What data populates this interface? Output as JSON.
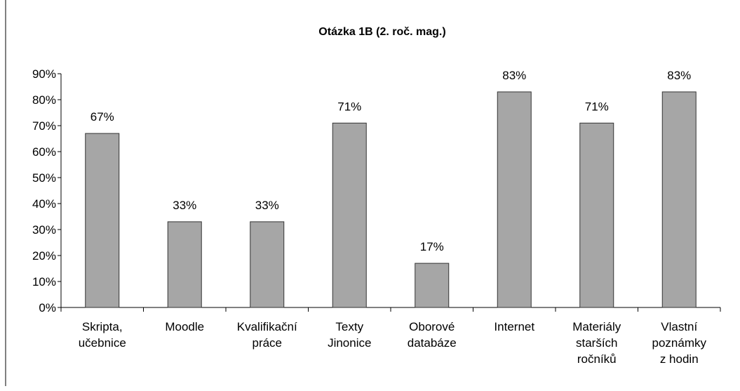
{
  "chart_data": {
    "type": "bar",
    "title": "Otázka 1B (2. roč. mag.)",
    "categories": [
      [
        "Skripta,",
        "učebnice"
      ],
      [
        "Moodle"
      ],
      [
        "Kvalifikační",
        "práce"
      ],
      [
        "Texty",
        "Jinonice"
      ],
      [
        "Oborové",
        "databáze"
      ],
      [
        "Internet"
      ],
      [
        "Materiály",
        "starších",
        "ročníků"
      ],
      [
        "Vlastní",
        "poznámky",
        "z hodin"
      ]
    ],
    "values": [
      67,
      33,
      33,
      71,
      17,
      83,
      71,
      83
    ],
    "value_labels": [
      "67%",
      "33%",
      "33%",
      "71%",
      "17%",
      "83%",
      "71%",
      "83%"
    ],
    "color": "#a6a6a6",
    "ylim": [
      0,
      90
    ],
    "yticks": [
      {
        "value": 0,
        "label": "0%"
      },
      {
        "value": 10,
        "label": "10%"
      },
      {
        "value": 20,
        "label": "20%"
      },
      {
        "value": 30,
        "label": "30%"
      },
      {
        "value": 40,
        "label": "40%"
      },
      {
        "value": 50,
        "label": "50%"
      },
      {
        "value": 60,
        "label": "60%"
      },
      {
        "value": 70,
        "label": "70%"
      },
      {
        "value": 80,
        "label": "80%"
      },
      {
        "value": 90,
        "label": "90%"
      }
    ],
    "grid": false
  }
}
